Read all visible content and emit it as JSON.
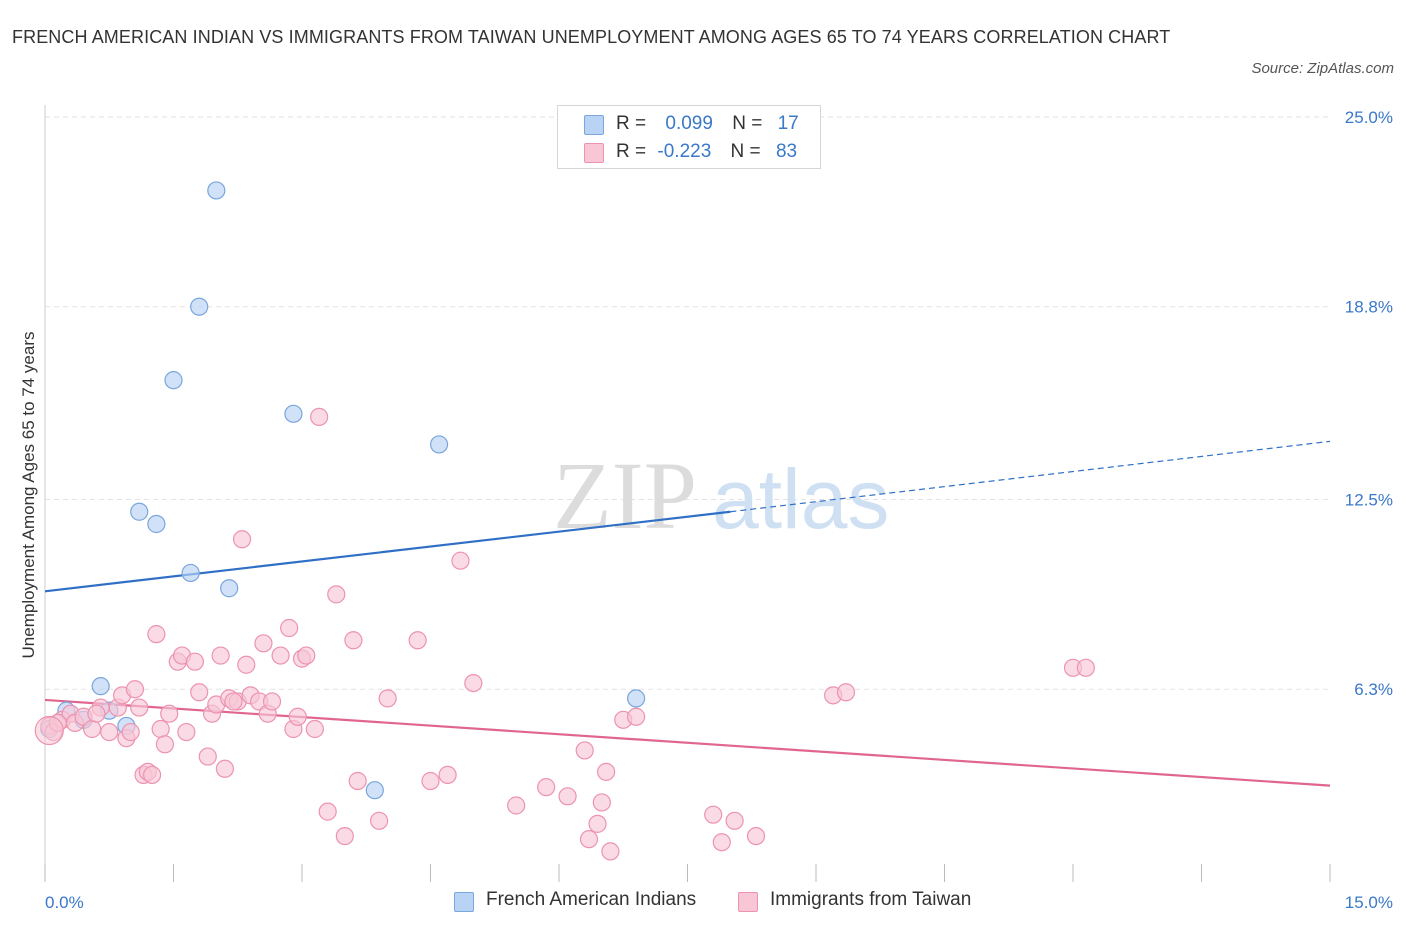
{
  "title": "FRENCH AMERICAN INDIAN VS IMMIGRANTS FROM TAIWAN UNEMPLOYMENT AMONG AGES 65 TO 74 YEARS CORRELATION CHART",
  "source": "Source: ZipAtlas.com",
  "watermark": {
    "zip": "ZIP",
    "atlas": "atlas"
  },
  "colors": {
    "blue_fill": "#b9d3f5",
    "blue_stroke": "#7aa6dc",
    "blue_line": "#2f6fc6",
    "pink_fill": "#f8c6d5",
    "pink_stroke": "#ec93b0",
    "pink_line": "#e06690",
    "grid": "#e2e2e2",
    "axis_label": "#3a78c9"
  },
  "legend_top": [
    {
      "name": "French American Indians",
      "r_label": "R =",
      "r_value": "0.099",
      "n_label": "N =",
      "n_value": "17"
    },
    {
      "name": "Immigrants from Taiwan",
      "r_label": "R =",
      "r_value": "-0.223",
      "n_label": "N =",
      "n_value": "83"
    }
  ],
  "chart_data": {
    "type": "scatter",
    "title": "FRENCH AMERICAN INDIAN VS IMMIGRANTS FROM TAIWAN UNEMPLOYMENT AMONG AGES 65 TO 74 YEARS CORRELATION CHART",
    "xlabel": "",
    "ylabel": "Unemployment Among Ages 65 to 74 years",
    "xlim": [
      0,
      15
    ],
    "ylim": [
      0,
      25
    ],
    "x_tick_labels": [
      {
        "value": 0,
        "label": "0.0%"
      },
      {
        "value": 15,
        "label": "15.0%"
      }
    ],
    "y_tick_labels": [
      {
        "value": 25.0,
        "label": "25.0%"
      },
      {
        "value": 18.8,
        "label": "18.8%"
      },
      {
        "value": 12.5,
        "label": "12.5%"
      },
      {
        "value": 6.3,
        "label": "6.3%"
      }
    ],
    "grid": true,
    "series": [
      {
        "name": "French American Indians",
        "color": "blue",
        "trend": {
          "x0": 0,
          "y0": 9.5,
          "x1": 8.0,
          "y1": 12.1,
          "dashed_to_x": 15,
          "dashed_to_y": 14.4
        },
        "points": [
          [
            0.05,
            5.0
          ],
          [
            0.25,
            5.6
          ],
          [
            0.65,
            6.4
          ],
          [
            0.95,
            5.1
          ],
          [
            1.1,
            12.1
          ],
          [
            1.3,
            11.7
          ],
          [
            1.5,
            16.4
          ],
          [
            1.7,
            10.1
          ],
          [
            1.8,
            18.8
          ],
          [
            2.0,
            22.6
          ],
          [
            2.15,
            9.6
          ],
          [
            2.9,
            15.3
          ],
          [
            3.85,
            3.0
          ],
          [
            4.6,
            14.3
          ],
          [
            6.9,
            6.0
          ],
          [
            0.75,
            5.6
          ],
          [
            0.45,
            5.3
          ]
        ]
      },
      {
        "name": "Immigrants from Taiwan",
        "color": "pink",
        "trend": {
          "x0": 0,
          "y0": 5.95,
          "x1": 15,
          "y1": 3.15
        },
        "points": [
          [
            0.05,
            5.1
          ],
          [
            0.1,
            4.9
          ],
          [
            0.2,
            5.3
          ],
          [
            0.3,
            5.5
          ],
          [
            0.35,
            5.2
          ],
          [
            0.45,
            5.4
          ],
          [
            0.55,
            5.0
          ],
          [
            0.65,
            5.7
          ],
          [
            0.75,
            4.9
          ],
          [
            0.85,
            5.7
          ],
          [
            0.9,
            6.1
          ],
          [
            0.95,
            4.7
          ],
          [
            1.0,
            4.9
          ],
          [
            1.05,
            6.3
          ],
          [
            1.1,
            5.7
          ],
          [
            1.15,
            3.5
          ],
          [
            1.2,
            3.6
          ],
          [
            1.25,
            3.5
          ],
          [
            1.3,
            8.1
          ],
          [
            1.35,
            5.0
          ],
          [
            1.4,
            4.5
          ],
          [
            1.45,
            5.5
          ],
          [
            1.55,
            7.2
          ],
          [
            1.6,
            7.4
          ],
          [
            1.65,
            4.9
          ],
          [
            1.75,
            7.2
          ],
          [
            1.8,
            6.2
          ],
          [
            1.9,
            4.1
          ],
          [
            1.95,
            5.5
          ],
          [
            2.0,
            5.8
          ],
          [
            2.05,
            7.4
          ],
          [
            2.1,
            3.7
          ],
          [
            2.15,
            6.0
          ],
          [
            2.25,
            5.9
          ],
          [
            2.3,
            11.2
          ],
          [
            2.35,
            7.1
          ],
          [
            2.4,
            6.1
          ],
          [
            2.5,
            5.9
          ],
          [
            2.55,
            7.8
          ],
          [
            2.6,
            5.5
          ],
          [
            2.65,
            5.9
          ],
          [
            2.75,
            7.4
          ],
          [
            2.85,
            8.3
          ],
          [
            2.9,
            5.0
          ],
          [
            2.95,
            5.4
          ],
          [
            3.0,
            7.3
          ],
          [
            3.05,
            7.4
          ],
          [
            3.15,
            5.0
          ],
          [
            3.2,
            15.2
          ],
          [
            3.3,
            2.3
          ],
          [
            3.4,
            9.4
          ],
          [
            3.5,
            1.5
          ],
          [
            3.6,
            7.9
          ],
          [
            3.65,
            3.3
          ],
          [
            3.9,
            2.0
          ],
          [
            4.0,
            6.0
          ],
          [
            4.35,
            7.9
          ],
          [
            4.5,
            3.3
          ],
          [
            4.7,
            3.5
          ],
          [
            4.85,
            10.5
          ],
          [
            5.0,
            6.5
          ],
          [
            5.5,
            2.5
          ],
          [
            5.85,
            3.1
          ],
          [
            6.1,
            2.8
          ],
          [
            6.3,
            4.3
          ],
          [
            6.35,
            1.4
          ],
          [
            6.45,
            1.9
          ],
          [
            6.5,
            2.6
          ],
          [
            6.55,
            3.6
          ],
          [
            6.6,
            1.0
          ],
          [
            6.75,
            5.3
          ],
          [
            6.9,
            5.4
          ],
          [
            7.8,
            2.2
          ],
          [
            7.9,
            1.3
          ],
          [
            8.05,
            2.0
          ],
          [
            8.3,
            1.5
          ],
          [
            9.2,
            6.1
          ],
          [
            9.35,
            6.2
          ],
          [
            12.0,
            7.0
          ],
          [
            12.15,
            7.0
          ],
          [
            0.15,
            5.2
          ],
          [
            0.6,
            5.5
          ],
          [
            2.2,
            5.9
          ]
        ]
      }
    ]
  }
}
